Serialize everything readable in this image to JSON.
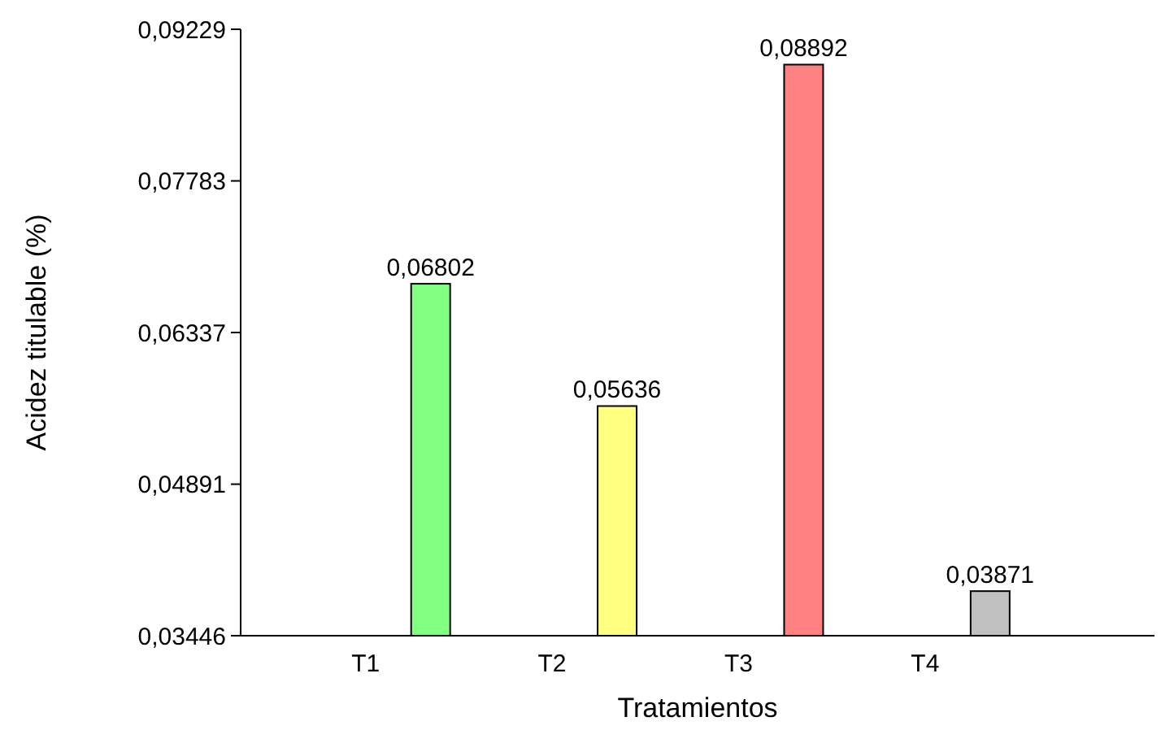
{
  "chart_data": {
    "type": "bar",
    "xlabel": "Tratamientos",
    "ylabel": "Acidez titulable (%)",
    "categories": [
      "T1",
      "T2",
      "T3",
      "T4"
    ],
    "values": [
      0.06802,
      0.05636,
      0.08892,
      0.03871
    ],
    "colors": [
      "#80ff80",
      "#ffff80",
      "#ff8080",
      "#c0c0c0"
    ],
    "value_labels": [
      "0,06802",
      "0,05636",
      "0,08892",
      "0,03871"
    ],
    "ylim": [
      0.03446,
      0.09229
    ],
    "yticks": [
      {
        "value": 0.03446,
        "label": "0,03446"
      },
      {
        "value": 0.04891,
        "label": "0,04891"
      },
      {
        "value": 0.06337,
        "label": "0,06337"
      },
      {
        "value": 0.07783,
        "label": "0,07783"
      },
      {
        "value": 0.09229,
        "label": "0,09229"
      }
    ],
    "grid": false
  }
}
